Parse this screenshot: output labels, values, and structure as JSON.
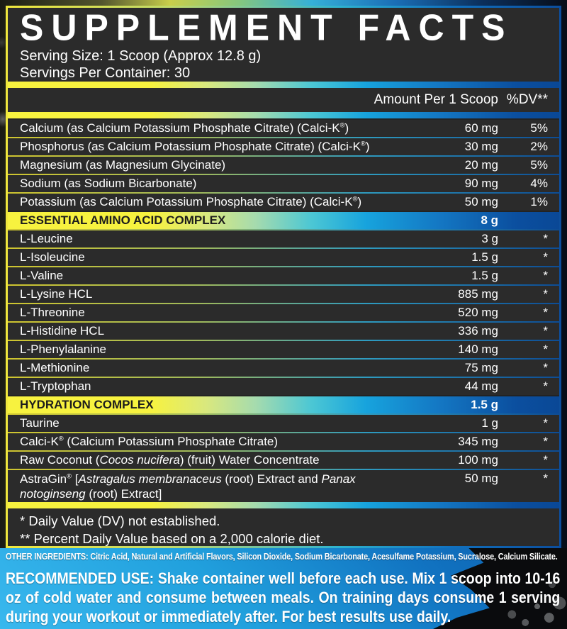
{
  "panel": {
    "title": "SUPPLEMENT FACTS",
    "serving_size": "Serving Size: 1 Scoop (Approx 12.8 g)",
    "servings_per_container": "Servings Per Container: 30",
    "col_amount": "Amount Per 1 Scoop",
    "col_dv": "%DV**",
    "rows": [
      {
        "type": "item",
        "name": [
          {
            "t": "Calcium (as Calcium Potassium Phosphate Citrate) (Calci-K"
          },
          {
            "t": "®",
            "sup": true
          },
          {
            "t": ")"
          }
        ],
        "amount": "60 mg",
        "dv": "5%"
      },
      {
        "type": "item",
        "name": [
          {
            "t": "Phosphorus (as Calcium Potassium Phosphate Citrate) (Calci-K"
          },
          {
            "t": "®",
            "sup": true
          },
          {
            "t": ")"
          }
        ],
        "amount": "30 mg",
        "dv": "2%"
      },
      {
        "type": "item",
        "name": "Magnesium (as Magnesium Glycinate)",
        "amount": "20 mg",
        "dv": "5%"
      },
      {
        "type": "item",
        "name": "Sodium (as Sodium Bicarbonate)",
        "amount": "90 mg",
        "dv": "4%"
      },
      {
        "type": "item",
        "name": [
          {
            "t": "Potassium (as Calcium Potassium Phosphate Citrate) (Calci-K"
          },
          {
            "t": "®",
            "sup": true
          },
          {
            "t": ")"
          }
        ],
        "amount": "50 mg",
        "dv": "1%"
      },
      {
        "type": "section",
        "name": "ESSENTIAL AMINO ACID COMPLEX",
        "amount": "8 g",
        "dv": ""
      },
      {
        "type": "item",
        "name": "L-Leucine",
        "amount": "3 g",
        "dv": "*"
      },
      {
        "type": "item",
        "name": "L-Isoleucine",
        "amount": "1.5 g",
        "dv": "*"
      },
      {
        "type": "item",
        "name": "L-Valine",
        "amount": "1.5 g",
        "dv": "*"
      },
      {
        "type": "item",
        "name": "L-Lysine HCL",
        "amount": "885 mg",
        "dv": "*"
      },
      {
        "type": "item",
        "name": "L-Threonine",
        "amount": "520 mg",
        "dv": "*"
      },
      {
        "type": "item",
        "name": "L-Histidine HCL",
        "amount": "336 mg",
        "dv": "*"
      },
      {
        "type": "item",
        "name": "L-Phenylalanine",
        "amount": "140 mg",
        "dv": "*"
      },
      {
        "type": "item",
        "name": "L-Methionine",
        "amount": "75 mg",
        "dv": "*"
      },
      {
        "type": "item",
        "name": "L-Tryptophan",
        "amount": "44 mg",
        "dv": "*"
      },
      {
        "type": "section",
        "name": "HYDRATION COMPLEX",
        "amount": "1.5 g",
        "dv": ""
      },
      {
        "type": "item",
        "name": "Taurine",
        "amount": "1 g",
        "dv": "*"
      },
      {
        "type": "item",
        "name": [
          {
            "t": "Calci-K"
          },
          {
            "t": "®",
            "sup": true
          },
          {
            "t": " (Calcium Potassium Phosphate Citrate)"
          }
        ],
        "amount": "345 mg",
        "dv": "*"
      },
      {
        "type": "item",
        "name": [
          {
            "t": "Raw Coconut ("
          },
          {
            "t": "Cocos nucifera",
            "i": true
          },
          {
            "t": ") (fruit) Water Concentrate"
          }
        ],
        "amount": "100 mg",
        "dv": "*"
      },
      {
        "type": "item",
        "two_line": true,
        "name": [
          {
            "t": "AstraGin"
          },
          {
            "t": "®",
            "sup": true
          },
          {
            "t": " ["
          },
          {
            "t": "Astragalus membranaceus",
            "i": true
          },
          {
            "t": " (root) Extract and "
          },
          {
            "t": "Panax notoginseng",
            "i": true
          },
          {
            "t": " (root) Extract]"
          }
        ],
        "amount": "50 mg",
        "dv": "*"
      }
    ],
    "footnotes": [
      "* Daily Value (DV) not established.",
      "** Percent Daily Value based on a 2,000 calorie diet."
    ]
  },
  "other_ingredients": "OTHER INGREDIENTS: Citric Acid, Natural and Artificial Flavors, Silicon Dioxide, Sodium Bicarbonate, Acesulfame Potassium, Sucralose, Calcium Silicate.",
  "recommended_use": {
    "label": "RECOMMENDED USE:",
    "text": "Shake container well before each use. Mix 1 scoop into 10-16 oz of cold water and consume between meals. On training days consume 1 serving during your workout or immediately after. For best results use daily."
  },
  "colors": {
    "accent_yellow": "#f7f23f",
    "accent_green": "#a5dbae",
    "accent_cyan": "#17a3dd",
    "accent_blue": "#0b4f9f",
    "panel_background": "#2b2b2b",
    "bottom_background_blue": "#1f9cda",
    "text": "#ffffff"
  }
}
